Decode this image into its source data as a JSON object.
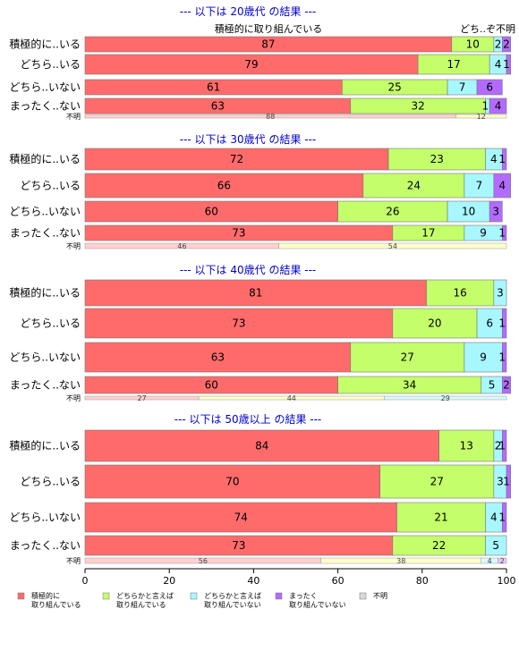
{
  "chart_data": {
    "type": "bar",
    "orientation": "horizontal",
    "stacked": true,
    "xlim": [
      0,
      100
    ],
    "xticks": [
      0,
      20,
      40,
      60,
      80,
      100
    ],
    "grid": false,
    "legend_position": "bottom",
    "series_names": [
      "積極的に\n取り組んでいる",
      "どちらかと言えば\n取り組んでいる",
      "どちらかと言えば\n取り組んでいない",
      "まったく\n取り組んでいない",
      "不明"
    ],
    "colors": [
      "#ff6b6b",
      "#c4ff6b",
      "#a8f7ff",
      "#b36bff",
      "#d9d9d9"
    ],
    "unknown_colors": [
      "#ffd0d0",
      "#ffffcc",
      "#d9f9ff",
      "#e5c8ff"
    ],
    "header_labels": [
      "積極的に取り組んでいる",
      "どち..ぞ",
      "不明"
    ],
    "panels": [
      {
        "title": "--- 以下は 20歳代 の結果 ---",
        "categories": [
          "積極的に..いる",
          "どちら..いる",
          "どちら..いない",
          "まったく..ない"
        ],
        "rows": [
          [
            87,
            10,
            2,
            2
          ],
          [
            79,
            17,
            4,
            1
          ],
          [
            61,
            25,
            7,
            6
          ],
          [
            63,
            32,
            1,
            4
          ]
        ],
        "unknown_label": "不明",
        "unknown": [
          88,
          12,
          0,
          0
        ]
      },
      {
        "title": "--- 以下は 30歳代 の結果 ---",
        "categories": [
          "積極的に..いる",
          "どちら..いる",
          "どちら..いない",
          "まったく..ない"
        ],
        "rows": [
          [
            72,
            23,
            4,
            1
          ],
          [
            66,
            24,
            7,
            4
          ],
          [
            60,
            26,
            10,
            3
          ],
          [
            73,
            17,
            9,
            1
          ]
        ],
        "unknown_label": "不明",
        "unknown": [
          46,
          54,
          0,
          0
        ]
      },
      {
        "title": "--- 以下は 40歳代 の結果 ---",
        "categories": [
          "積極的に..いる",
          "どちら..いる",
          "どちら..いない",
          "まったく..ない"
        ],
        "rows": [
          [
            81,
            16,
            3,
            0
          ],
          [
            73,
            20,
            6,
            1
          ],
          [
            63,
            27,
            9,
            1
          ],
          [
            60,
            34,
            5,
            2
          ]
        ],
        "unknown_label": "不明",
        "unknown": [
          27,
          44,
          29,
          0
        ]
      },
      {
        "title": "--- 以下は 50歳以上 の結果 ---",
        "categories": [
          "積極的に..いる",
          "どちら..いる",
          "どちら..いない",
          "まったく..ない"
        ],
        "rows": [
          [
            84,
            13,
            2,
            1
          ],
          [
            70,
            27,
            3,
            1
          ],
          [
            74,
            21,
            4,
            1
          ],
          [
            73,
            22,
            5,
            0
          ]
        ],
        "unknown_label": "不明",
        "unknown": [
          56,
          38,
          4,
          2
        ]
      }
    ]
  }
}
